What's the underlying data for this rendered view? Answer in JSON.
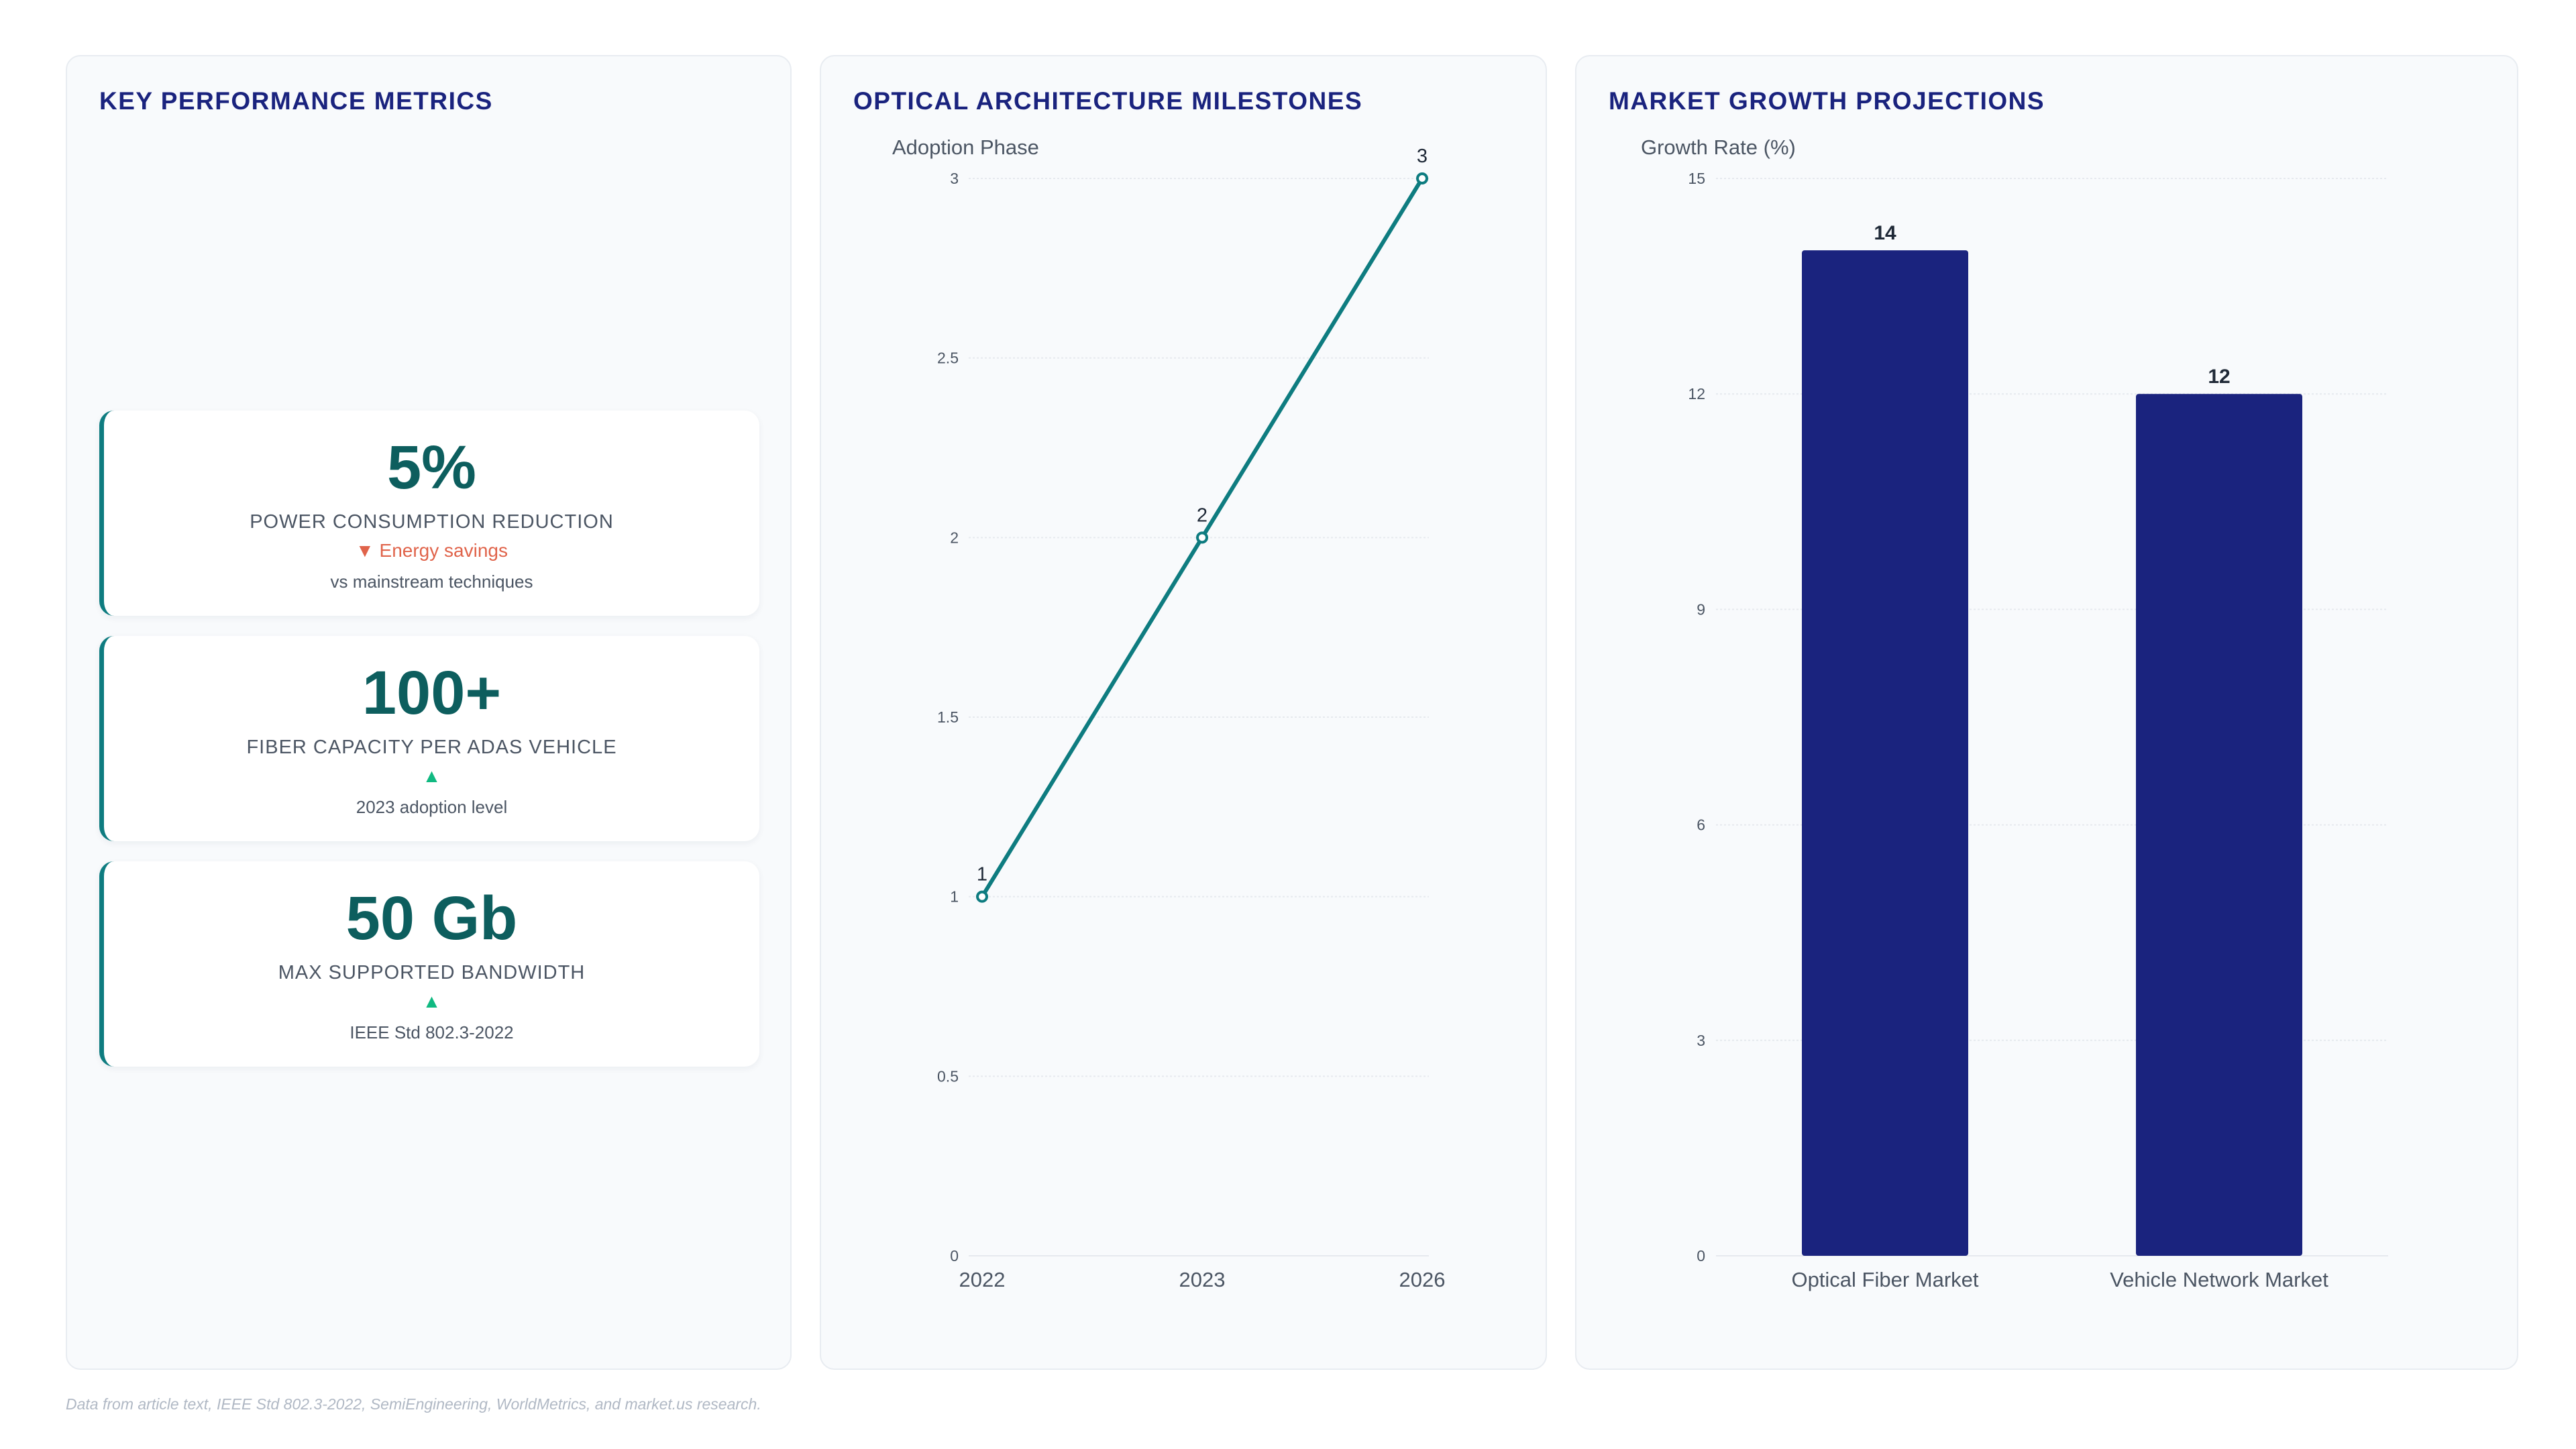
{
  "footnote": "Data from article text, IEEE Std 802.3-2022, SemiEngineering, WorldMetrics, and market.us research.",
  "colors": {
    "title": "#1a237e",
    "teal": "#0e7c80",
    "kpi_value": "#0d5e5e",
    "down": "#e0634a",
    "up": "#10b981",
    "bar": "#1a237e",
    "panel_bg": "#f8fafc"
  },
  "kpi_panel": {
    "title": "KEY PERFORMANCE METRICS",
    "cards": [
      {
        "value": "5%",
        "label": "POWER CONSUMPTION REDUCTION",
        "trend": "▼ Energy savings",
        "trend_dir": "down",
        "note": "vs mainstream techniques"
      },
      {
        "value": "100+",
        "label": "FIBER CAPACITY PER ADAS VEHICLE",
        "trend": "▲",
        "trend_dir": "up",
        "note": "2023 adoption level"
      },
      {
        "value": "50 Gb",
        "label": "MAX SUPPORTED BANDWIDTH",
        "trend": "▲",
        "trend_dir": "up",
        "note": "IEEE Std 802.3-2022"
      }
    ]
  },
  "chart_data": [
    {
      "type": "line",
      "title": "OPTICAL ARCHITECTURE MILESTONES",
      "ylabel": "Adoption Phase",
      "xlabel": "",
      "categories": [
        "2022",
        "2023",
        "2026"
      ],
      "series": [
        {
          "values": [
            1,
            2,
            3
          ]
        }
      ],
      "data_labels": [
        "1",
        "2",
        "3"
      ],
      "ylim": [
        0,
        3
      ],
      "yticks": [
        0,
        0.5,
        1,
        1.5,
        2,
        2.5,
        3
      ],
      "ytick_labels": [
        "0",
        "0.5",
        "1",
        "1.5",
        "2",
        "2.5",
        "3"
      ],
      "grid": true,
      "color": "#0e7c80"
    },
    {
      "type": "bar",
      "title": "MARKET GROWTH PROJECTIONS",
      "ylabel": "Growth Rate (%)",
      "xlabel": "",
      "categories": [
        "Optical Fiber Market",
        "Vehicle Network Market"
      ],
      "values": [
        14,
        12
      ],
      "data_labels": [
        "14",
        "12"
      ],
      "ylim": [
        0,
        15
      ],
      "yticks": [
        0,
        3,
        6,
        9,
        12,
        15
      ],
      "ytick_labels": [
        "0",
        "3",
        "6",
        "9",
        "12",
        "15"
      ],
      "grid": true,
      "color": "#1a237e"
    }
  ]
}
